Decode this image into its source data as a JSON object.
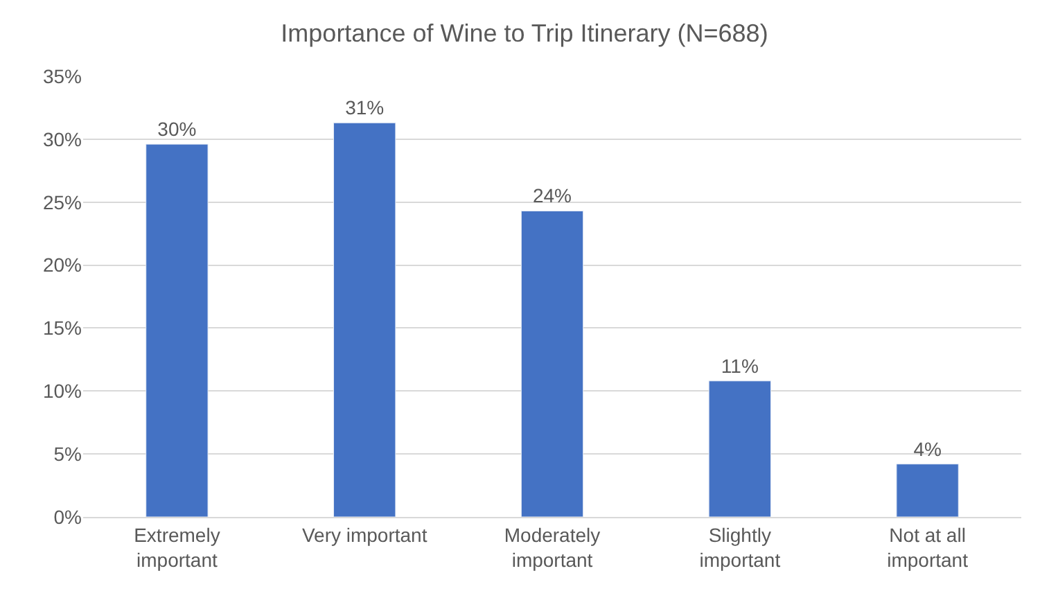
{
  "chart_data": {
    "type": "bar",
    "title": "Importance of Wine to Trip Itinerary (N=688)",
    "categories": [
      "Extremely important",
      "Very important",
      "Moderately important",
      "Slightly important",
      "Not at all important"
    ],
    "values": [
      29.6,
      31.3,
      24.3,
      10.8,
      4.2
    ],
    "value_labels": [
      "30%",
      "31%",
      "24%",
      "11%",
      "4%"
    ],
    "color": "#4472c4",
    "ylim": [
      0,
      35
    ],
    "yticks": [
      {
        "value": 0,
        "label": "0%"
      },
      {
        "value": 5,
        "label": "5%"
      },
      {
        "value": 10,
        "label": "10%"
      },
      {
        "value": 15,
        "label": "15%"
      },
      {
        "value": 20,
        "label": "20%"
      },
      {
        "value": 25,
        "label": "25%"
      },
      {
        "value": 30,
        "label": "30%"
      },
      {
        "value": 35,
        "label": "35%"
      }
    ],
    "grid": "y",
    "legend": false
  }
}
